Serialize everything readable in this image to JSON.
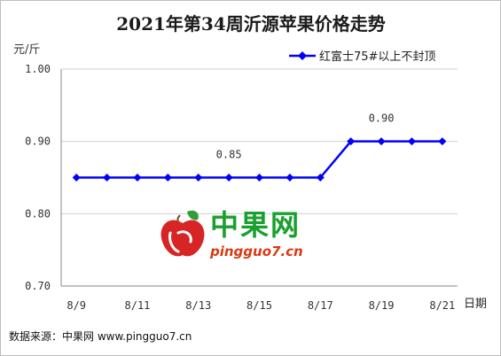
{
  "chart_data": {
    "type": "line",
    "title": "2021年第34周沂源苹果价格走势",
    "ylabel": "元/斤",
    "xlabel": "日期",
    "ylim": [
      0.7,
      1.0
    ],
    "yticks": [
      "1.00",
      "0.90",
      "0.80",
      "0.70"
    ],
    "x_tick_labels": [
      "8/9",
      "8/11",
      "8/13",
      "8/15",
      "8/17",
      "8/19",
      "8/21"
    ],
    "categories": [
      "8/9",
      "8/10",
      "8/11",
      "8/12",
      "8/13",
      "8/14",
      "8/15",
      "8/16",
      "8/17",
      "8/18",
      "8/19",
      "8/20",
      "8/21"
    ],
    "series": [
      {
        "name": "红富士75#以上不封顶",
        "color": "#0000ff",
        "marker": "diamond",
        "values": [
          0.85,
          0.85,
          0.85,
          0.85,
          0.85,
          0.85,
          0.85,
          0.85,
          0.85,
          0.9,
          0.9,
          0.9,
          0.9
        ]
      }
    ],
    "annotations": [
      {
        "category": "8/14",
        "value": 0.85,
        "text": "0.85"
      },
      {
        "category": "8/19",
        "value": 0.9,
        "text": "0.90"
      }
    ],
    "legend": "top-right",
    "grid": "horizontal"
  },
  "watermark": {
    "logo_icon": "apple-logo-icon",
    "brand_cn": "中果网",
    "url": "pingguo7.cn"
  },
  "footer": {
    "source": "数据来源：中果网 www.pingguo7.cn"
  }
}
